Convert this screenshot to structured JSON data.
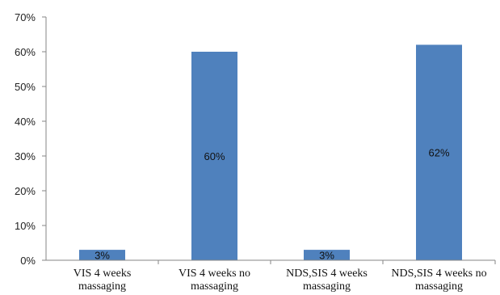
{
  "chart_data": {
    "type": "bar",
    "title": "",
    "xlabel": "",
    "ylabel": "",
    "ylim": [
      0,
      70
    ],
    "y_ticks": [
      "0%",
      "10%",
      "20%",
      "30%",
      "40%",
      "50%",
      "60%",
      "70%"
    ],
    "grid": false,
    "legend": "none",
    "categories": [
      [
        "VIS 4 weeks",
        "massaging"
      ],
      [
        "VIS 4 weeks no",
        "massaging"
      ],
      [
        "NDS,SIS 4 weeks",
        "massaging"
      ],
      [
        "NDS,SIS 4 weeks no",
        "massaging"
      ]
    ],
    "values": [
      3,
      60,
      3,
      62
    ],
    "data_labels": [
      "3%",
      "60%",
      "3%",
      "62%"
    ],
    "bar_color": "#4f81bd",
    "axis_color": "#868686"
  }
}
